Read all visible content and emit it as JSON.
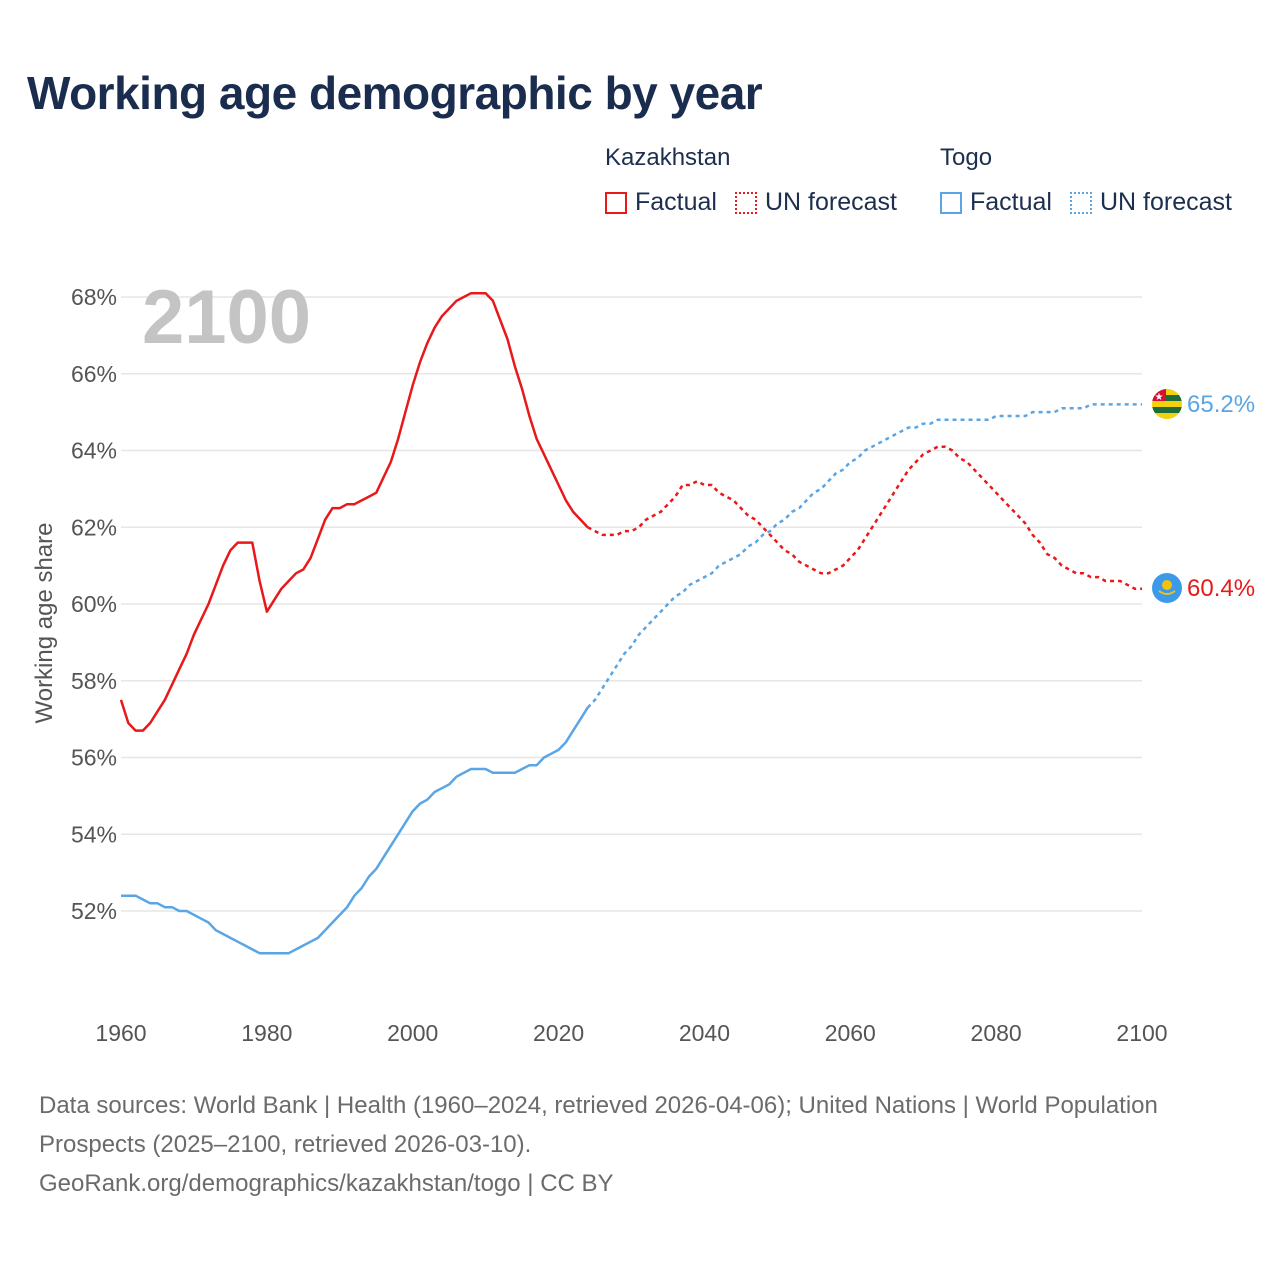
{
  "title": "Working age demographic by year",
  "legend": {
    "groups": [
      {
        "country": "Kazakhstan",
        "factual": "Factual",
        "forecast": "UN forecast",
        "color": "#e8181b"
      },
      {
        "country": "Togo",
        "factual": "Factual",
        "forecast": "UN forecast",
        "color": "#5aa5e5"
      }
    ]
  },
  "footer": {
    "line1": "Data sources: World Bank | Health (1960–2024, retrieved 2026-04-06); United Nations | World Population Prospects (2025–2100, retrieved 2026-03-10).",
    "line2": "GeoRank.org/demographics/kazakhstan/togo | CC BY"
  },
  "chart_data": {
    "type": "line",
    "title": "Working age demographic by year",
    "ylabel": "Working age share",
    "xlabel": "",
    "year_label": "2100",
    "xlim": [
      1960,
      2100
    ],
    "ylim": [
      50,
      68.8
    ],
    "x_ticks": [
      1960,
      1980,
      2000,
      2020,
      2040,
      2060,
      2080,
      2100
    ],
    "y_ticks": [
      52,
      54,
      56,
      58,
      60,
      62,
      64,
      66,
      68
    ],
    "y_tick_suffix": "%",
    "grid": true,
    "series": [
      {
        "name": "Kazakhstan",
        "color": "#e8181b",
        "end_label": "60.4%",
        "factual": [
          [
            1960,
            57.5
          ],
          [
            1961,
            56.9
          ],
          [
            1962,
            56.7
          ],
          [
            1963,
            56.7
          ],
          [
            1964,
            56.9
          ],
          [
            1965,
            57.2
          ],
          [
            1966,
            57.5
          ],
          [
            1967,
            57.9
          ],
          [
            1968,
            58.3
          ],
          [
            1969,
            58.7
          ],
          [
            1970,
            59.2
          ],
          [
            1971,
            59.6
          ],
          [
            1972,
            60.0
          ],
          [
            1973,
            60.5
          ],
          [
            1974,
            61.0
          ],
          [
            1975,
            61.4
          ],
          [
            1976,
            61.6
          ],
          [
            1977,
            61.6
          ],
          [
            1978,
            61.6
          ],
          [
            1979,
            60.6
          ],
          [
            1980,
            59.8
          ],
          [
            1981,
            60.1
          ],
          [
            1982,
            60.4
          ],
          [
            1983,
            60.6
          ],
          [
            1984,
            60.8
          ],
          [
            1985,
            60.9
          ],
          [
            1986,
            61.2
          ],
          [
            1987,
            61.7
          ],
          [
            1988,
            62.2
          ],
          [
            1989,
            62.5
          ],
          [
            1990,
            62.5
          ],
          [
            1991,
            62.6
          ],
          [
            1992,
            62.6
          ],
          [
            1993,
            62.7
          ],
          [
            1994,
            62.8
          ],
          [
            1995,
            62.9
          ],
          [
            1996,
            63.3
          ],
          [
            1997,
            63.7
          ],
          [
            1998,
            64.3
          ],
          [
            1999,
            65.0
          ],
          [
            2000,
            65.7
          ],
          [
            2001,
            66.3
          ],
          [
            2002,
            66.8
          ],
          [
            2003,
            67.2
          ],
          [
            2004,
            67.5
          ],
          [
            2005,
            67.7
          ],
          [
            2006,
            67.9
          ],
          [
            2007,
            68.0
          ],
          [
            2008,
            68.1
          ],
          [
            2009,
            68.1
          ],
          [
            2010,
            68.1
          ],
          [
            2011,
            67.9
          ],
          [
            2012,
            67.4
          ],
          [
            2013,
            66.9
          ],
          [
            2014,
            66.2
          ],
          [
            2015,
            65.6
          ],
          [
            2016,
            64.9
          ],
          [
            2017,
            64.3
          ],
          [
            2018,
            63.9
          ],
          [
            2019,
            63.5
          ],
          [
            2020,
            63.1
          ],
          [
            2021,
            62.7
          ],
          [
            2022,
            62.4
          ],
          [
            2023,
            62.2
          ],
          [
            2024,
            62.0
          ]
        ],
        "forecast": [
          [
            2024,
            62.0
          ],
          [
            2025,
            61.9
          ],
          [
            2026,
            61.8
          ],
          [
            2027,
            61.8
          ],
          [
            2028,
            61.8
          ],
          [
            2029,
            61.9
          ],
          [
            2030,
            61.9
          ],
          [
            2031,
            62.0
          ],
          [
            2032,
            62.2
          ],
          [
            2033,
            62.3
          ],
          [
            2034,
            62.4
          ],
          [
            2035,
            62.6
          ],
          [
            2036,
            62.8
          ],
          [
            2037,
            63.1
          ],
          [
            2038,
            63.1
          ],
          [
            2039,
            63.2
          ],
          [
            2040,
            63.1
          ],
          [
            2041,
            63.1
          ],
          [
            2042,
            62.9
          ],
          [
            2043,
            62.8
          ],
          [
            2044,
            62.7
          ],
          [
            2045,
            62.5
          ],
          [
            2046,
            62.3
          ],
          [
            2047,
            62.2
          ],
          [
            2048,
            62.0
          ],
          [
            2049,
            61.8
          ],
          [
            2050,
            61.6
          ],
          [
            2051,
            61.4
          ],
          [
            2052,
            61.3
          ],
          [
            2053,
            61.1
          ],
          [
            2054,
            61.0
          ],
          [
            2055,
            60.9
          ],
          [
            2056,
            60.8
          ],
          [
            2057,
            60.8
          ],
          [
            2058,
            60.9
          ],
          [
            2059,
            61.0
          ],
          [
            2060,
            61.2
          ],
          [
            2061,
            61.4
          ],
          [
            2062,
            61.7
          ],
          [
            2063,
            62.0
          ],
          [
            2064,
            62.3
          ],
          [
            2065,
            62.6
          ],
          [
            2066,
            62.9
          ],
          [
            2067,
            63.2
          ],
          [
            2068,
            63.5
          ],
          [
            2069,
            63.7
          ],
          [
            2070,
            63.9
          ],
          [
            2071,
            64.0
          ],
          [
            2072,
            64.1
          ],
          [
            2073,
            64.1
          ],
          [
            2074,
            64.0
          ],
          [
            2075,
            63.8
          ],
          [
            2076,
            63.7
          ],
          [
            2077,
            63.5
          ],
          [
            2078,
            63.3
          ],
          [
            2079,
            63.1
          ],
          [
            2080,
            62.9
          ],
          [
            2081,
            62.7
          ],
          [
            2082,
            62.5
          ],
          [
            2083,
            62.3
          ],
          [
            2084,
            62.1
          ],
          [
            2085,
            61.8
          ],
          [
            2086,
            61.6
          ],
          [
            2087,
            61.3
          ],
          [
            2088,
            61.2
          ],
          [
            2089,
            61.0
          ],
          [
            2090,
            60.9
          ],
          [
            2091,
            60.8
          ],
          [
            2092,
            60.8
          ],
          [
            2093,
            60.7
          ],
          [
            2094,
            60.7
          ],
          [
            2095,
            60.6
          ],
          [
            2096,
            60.6
          ],
          [
            2097,
            60.6
          ],
          [
            2098,
            60.5
          ],
          [
            2099,
            60.4
          ],
          [
            2100,
            60.4
          ]
        ]
      },
      {
        "name": "Togo",
        "color": "#5aa5e5",
        "end_label": "65.2%",
        "factual": [
          [
            1960,
            52.4
          ],
          [
            1961,
            52.4
          ],
          [
            1962,
            52.4
          ],
          [
            1963,
            52.3
          ],
          [
            1964,
            52.2
          ],
          [
            1965,
            52.2
          ],
          [
            1966,
            52.1
          ],
          [
            1967,
            52.1
          ],
          [
            1968,
            52.0
          ],
          [
            1969,
            52.0
          ],
          [
            1970,
            51.9
          ],
          [
            1971,
            51.8
          ],
          [
            1972,
            51.7
          ],
          [
            1973,
            51.5
          ],
          [
            1974,
            51.4
          ],
          [
            1975,
            51.3
          ],
          [
            1976,
            51.2
          ],
          [
            1977,
            51.1
          ],
          [
            1978,
            51.0
          ],
          [
            1979,
            50.9
          ],
          [
            1980,
            50.9
          ],
          [
            1981,
            50.9
          ],
          [
            1982,
            50.9
          ],
          [
            1983,
            50.9
          ],
          [
            1984,
            51.0
          ],
          [
            1985,
            51.1
          ],
          [
            1986,
            51.2
          ],
          [
            1987,
            51.3
          ],
          [
            1988,
            51.5
          ],
          [
            1989,
            51.7
          ],
          [
            1990,
            51.9
          ],
          [
            1991,
            52.1
          ],
          [
            1992,
            52.4
          ],
          [
            1993,
            52.6
          ],
          [
            1994,
            52.9
          ],
          [
            1995,
            53.1
          ],
          [
            1996,
            53.4
          ],
          [
            1997,
            53.7
          ],
          [
            1998,
            54.0
          ],
          [
            1999,
            54.3
          ],
          [
            2000,
            54.6
          ],
          [
            2001,
            54.8
          ],
          [
            2002,
            54.9
          ],
          [
            2003,
            55.1
          ],
          [
            2004,
            55.2
          ],
          [
            2005,
            55.3
          ],
          [
            2006,
            55.5
          ],
          [
            2007,
            55.6
          ],
          [
            2008,
            55.7
          ],
          [
            2009,
            55.7
          ],
          [
            2010,
            55.7
          ],
          [
            2011,
            55.6
          ],
          [
            2012,
            55.6
          ],
          [
            2013,
            55.6
          ],
          [
            2014,
            55.6
          ],
          [
            2015,
            55.7
          ],
          [
            2016,
            55.8
          ],
          [
            2017,
            55.8
          ],
          [
            2018,
            56.0
          ],
          [
            2019,
            56.1
          ],
          [
            2020,
            56.2
          ],
          [
            2021,
            56.4
          ],
          [
            2022,
            56.7
          ],
          [
            2023,
            57.0
          ],
          [
            2024,
            57.3
          ]
        ],
        "forecast": [
          [
            2024,
            57.3
          ],
          [
            2025,
            57.5
          ],
          [
            2026,
            57.8
          ],
          [
            2027,
            58.1
          ],
          [
            2028,
            58.4
          ],
          [
            2029,
            58.7
          ],
          [
            2030,
            58.9
          ],
          [
            2031,
            59.2
          ],
          [
            2032,
            59.4
          ],
          [
            2033,
            59.6
          ],
          [
            2034,
            59.8
          ],
          [
            2035,
            60.0
          ],
          [
            2036,
            60.2
          ],
          [
            2037,
            60.3
          ],
          [
            2038,
            60.5
          ],
          [
            2039,
            60.6
          ],
          [
            2040,
            60.7
          ],
          [
            2041,
            60.8
          ],
          [
            2042,
            61.0
          ],
          [
            2043,
            61.1
          ],
          [
            2044,
            61.2
          ],
          [
            2045,
            61.3
          ],
          [
            2046,
            61.5
          ],
          [
            2047,
            61.6
          ],
          [
            2048,
            61.8
          ],
          [
            2049,
            61.9
          ],
          [
            2050,
            62.1
          ],
          [
            2051,
            62.2
          ],
          [
            2052,
            62.4
          ],
          [
            2053,
            62.5
          ],
          [
            2054,
            62.7
          ],
          [
            2055,
            62.9
          ],
          [
            2056,
            63.0
          ],
          [
            2057,
            63.2
          ],
          [
            2058,
            63.4
          ],
          [
            2059,
            63.5
          ],
          [
            2060,
            63.7
          ],
          [
            2061,
            63.8
          ],
          [
            2062,
            64.0
          ],
          [
            2063,
            64.1
          ],
          [
            2064,
            64.2
          ],
          [
            2065,
            64.3
          ],
          [
            2066,
            64.4
          ],
          [
            2067,
            64.5
          ],
          [
            2068,
            64.6
          ],
          [
            2069,
            64.6
          ],
          [
            2070,
            64.7
          ],
          [
            2071,
            64.7
          ],
          [
            2072,
            64.8
          ],
          [
            2073,
            64.8
          ],
          [
            2074,
            64.8
          ],
          [
            2075,
            64.8
          ],
          [
            2076,
            64.8
          ],
          [
            2077,
            64.8
          ],
          [
            2078,
            64.8
          ],
          [
            2079,
            64.8
          ],
          [
            2080,
            64.9
          ],
          [
            2081,
            64.9
          ],
          [
            2082,
            64.9
          ],
          [
            2083,
            64.9
          ],
          [
            2084,
            64.9
          ],
          [
            2085,
            65.0
          ],
          [
            2086,
            65.0
          ],
          [
            2087,
            65.0
          ],
          [
            2088,
            65.0
          ],
          [
            2089,
            65.1
          ],
          [
            2090,
            65.1
          ],
          [
            2091,
            65.1
          ],
          [
            2092,
            65.1
          ],
          [
            2093,
            65.2
          ],
          [
            2094,
            65.2
          ],
          [
            2095,
            65.2
          ],
          [
            2096,
            65.2
          ],
          [
            2097,
            65.2
          ],
          [
            2098,
            65.2
          ],
          [
            2099,
            65.2
          ],
          [
            2100,
            65.2
          ]
        ]
      }
    ]
  }
}
